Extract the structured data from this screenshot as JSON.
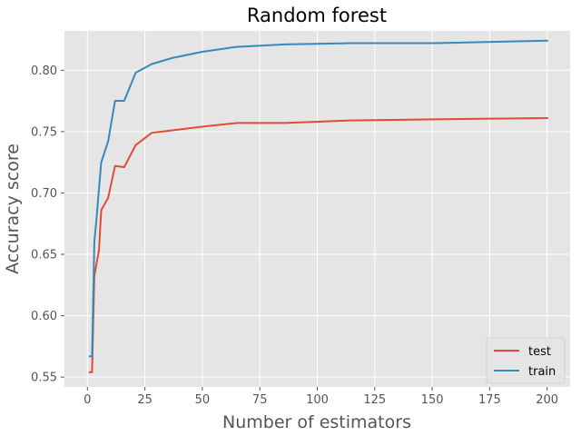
{
  "chart_data": {
    "type": "line",
    "title": "Random forest",
    "xlabel": "Number of estimators",
    "ylabel": "Accuracy score",
    "xlim": [
      -10,
      210
    ],
    "ylim": [
      0.542,
      0.832
    ],
    "xticks": [
      0,
      25,
      50,
      75,
      100,
      125,
      150,
      175,
      200
    ],
    "xtick_labels": [
      "0",
      "25",
      "50",
      "75",
      "100",
      "125",
      "150",
      "175",
      "200"
    ],
    "yticks": [
      0.55,
      0.6,
      0.65,
      0.7,
      0.75,
      0.8
    ],
    "ytick_labels": [
      "0.55",
      "0.60",
      "0.65",
      "0.70",
      "0.75",
      "0.80"
    ],
    "grid": true,
    "legend_position": "lower-right",
    "series": [
      {
        "name": "test",
        "color": "#E24A33",
        "x": [
          1,
          2,
          3,
          4,
          5,
          6,
          9,
          12,
          16,
          21,
          28,
          37,
          50,
          65,
          86,
          114,
          151,
          200
        ],
        "y": [
          0.554,
          0.554,
          0.632,
          0.643,
          0.653,
          0.686,
          0.696,
          0.722,
          0.721,
          0.739,
          0.749,
          0.751,
          0.754,
          0.757,
          0.757,
          0.759,
          0.76,
          0.761
        ]
      },
      {
        "name": "train",
        "color": "#348ABD",
        "x": [
          1,
          2,
          3,
          4,
          5,
          6,
          9,
          12,
          16,
          21,
          28,
          37,
          50,
          65,
          86,
          114,
          151,
          200
        ],
        "y": [
          0.567,
          0.567,
          0.66,
          0.68,
          0.703,
          0.725,
          0.742,
          0.775,
          0.775,
          0.798,
          0.805,
          0.81,
          0.815,
          0.819,
          0.821,
          0.822,
          0.822,
          0.824
        ]
      }
    ]
  }
}
